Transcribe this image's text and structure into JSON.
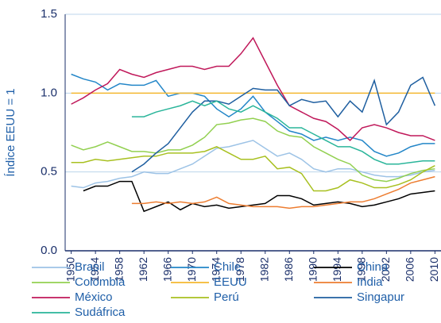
{
  "chart_data": {
    "type": "line",
    "y_label": "Índice EEUU = 1",
    "x": [
      1950,
      1952,
      1954,
      1956,
      1958,
      1960,
      1962,
      1964,
      1966,
      1968,
      1970,
      1972,
      1974,
      1976,
      1978,
      1980,
      1982,
      1984,
      1986,
      1988,
      1990,
      1992,
      1994,
      1996,
      1998,
      2000,
      2002,
      2004,
      2006,
      2008,
      2010
    ],
    "xlim": [
      1949,
      2011
    ],
    "xticks": [
      1950,
      1954,
      1958,
      1962,
      1966,
      1970,
      1974,
      1978,
      1982,
      1986,
      1990,
      1994,
      1998,
      2002,
      2006,
      2010
    ],
    "ylim": [
      0,
      1.5
    ],
    "yticks": [
      {
        "value": 0,
        "label": "0.0"
      },
      0.5,
      {
        "value": 1,
        "label": "1.0"
      },
      1.5
    ],
    "grid": true,
    "series": [
      {
        "name": "Brasil",
        "color": "#9dc3e6",
        "values": [
          0.41,
          0.4,
          0.43,
          0.44,
          0.46,
          0.47,
          0.5,
          0.49,
          0.49,
          0.52,
          0.55,
          0.6,
          0.65,
          0.66,
          0.68,
          0.7,
          0.65,
          0.6,
          0.62,
          0.58,
          0.52,
          0.5,
          0.52,
          0.52,
          0.5,
          0.48,
          0.47,
          0.47,
          0.48,
          0.5,
          0.51
        ]
      },
      {
        "name": "Chile",
        "color": "#2386c8",
        "values": [
          1.12,
          1.09,
          1.07,
          1.02,
          1.06,
          1.05,
          1.05,
          1.08,
          0.98,
          1.0,
          1.0,
          0.98,
          0.9,
          0.85,
          0.9,
          0.98,
          0.88,
          0.82,
          0.76,
          0.74,
          0.7,
          0.72,
          0.7,
          0.72,
          0.7,
          0.63,
          0.6,
          0.62,
          0.66,
          0.68,
          0.68
        ]
      },
      {
        "name": "China",
        "color": "#000000",
        "values": [
          null,
          0.38,
          0.41,
          0.41,
          0.44,
          0.44,
          0.25,
          0.28,
          0.31,
          0.26,
          0.3,
          0.28,
          0.29,
          0.27,
          0.28,
          0.29,
          0.3,
          0.35,
          0.35,
          0.33,
          0.29,
          0.3,
          0.31,
          0.3,
          0.28,
          0.29,
          0.31,
          0.33,
          0.36,
          0.37,
          0.38
        ]
      },
      {
        "name": "Colombia",
        "color": "#92d050",
        "values": [
          0.67,
          0.64,
          0.66,
          0.69,
          0.66,
          0.63,
          0.63,
          0.62,
          0.64,
          0.64,
          0.67,
          0.72,
          0.8,
          0.81,
          0.83,
          0.84,
          0.82,
          0.76,
          0.73,
          0.72,
          0.66,
          0.62,
          0.58,
          0.55,
          0.48,
          0.45,
          0.44,
          0.46,
          0.49,
          0.51,
          0.52
        ]
      },
      {
        "name": "EEUU",
        "color": "#f5b830",
        "values": [
          1,
          1,
          1,
          1,
          1,
          1,
          1,
          1,
          1,
          1,
          1,
          1,
          1,
          1,
          1,
          1,
          1,
          1,
          1,
          1,
          1,
          1,
          1,
          1,
          1,
          1,
          1,
          1,
          1,
          1,
          1
        ]
      },
      {
        "name": "India",
        "color": "#ed7d31",
        "values": [
          null,
          null,
          null,
          null,
          null,
          0.3,
          0.3,
          0.31,
          0.3,
          0.31,
          0.3,
          0.31,
          0.34,
          0.3,
          0.29,
          0.28,
          0.28,
          0.28,
          0.27,
          0.28,
          0.28,
          0.29,
          0.3,
          0.31,
          0.31,
          0.33,
          0.36,
          0.39,
          0.43,
          0.45,
          0.47
        ]
      },
      {
        "name": "México",
        "color": "#c0185a",
        "values": [
          0.93,
          0.97,
          1.02,
          1.06,
          1.15,
          1.12,
          1.1,
          1.13,
          1.15,
          1.17,
          1.17,
          1.15,
          1.17,
          1.17,
          1.25,
          1.35,
          1.2,
          1.05,
          0.92,
          0.88,
          0.84,
          0.82,
          0.77,
          0.7,
          0.78,
          0.8,
          0.78,
          0.75,
          0.73,
          0.73,
          0.7
        ]
      },
      {
        "name": "Perú",
        "color": "#a8c020",
        "values": [
          0.56,
          0.56,
          0.58,
          0.57,
          0.58,
          0.59,
          0.6,
          0.6,
          0.62,
          0.62,
          0.62,
          0.63,
          0.66,
          0.62,
          0.58,
          0.58,
          0.6,
          0.52,
          0.53,
          0.49,
          0.38,
          0.38,
          0.4,
          0.45,
          0.43,
          0.4,
          0.4,
          0.42,
          0.45,
          0.5,
          0.54
        ]
      },
      {
        "name": "Singapur",
        "color": "#1f5fa0",
        "values": [
          null,
          null,
          null,
          null,
          null,
          0.5,
          0.55,
          0.62,
          0.68,
          0.78,
          0.88,
          0.95,
          0.95,
          0.93,
          0.98,
          1.03,
          1.02,
          1.02,
          0.92,
          0.96,
          0.94,
          0.95,
          0.85,
          0.95,
          0.88,
          1.08,
          0.8,
          0.88,
          1.05,
          1.1,
          0.92
        ]
      },
      {
        "name": "Sudáfrica",
        "color": "#2ab59a",
        "values": [
          null,
          null,
          null,
          null,
          null,
          0.85,
          0.85,
          0.88,
          0.9,
          0.92,
          0.95,
          0.92,
          0.95,
          0.9,
          0.88,
          0.92,
          0.88,
          0.84,
          0.78,
          0.78,
          0.74,
          0.7,
          0.66,
          0.66,
          0.63,
          0.58,
          0.55,
          0.55,
          0.56,
          0.57,
          0.57
        ]
      }
    ]
  }
}
